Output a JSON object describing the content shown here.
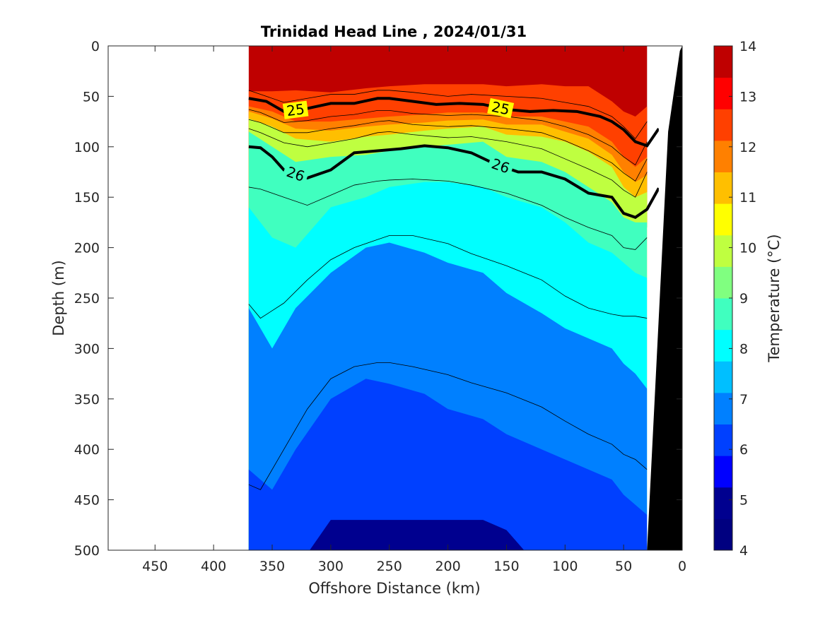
{
  "chart_data": {
    "type": "heatmap",
    "title": "Trinidad Head Line , 2024/01/31",
    "xlabel": "Offshore Distance (km)",
    "ylabel": "Depth (m)",
    "colorbar_label": "Temperature (°C)",
    "xlim": [
      490,
      0
    ],
    "ylim": [
      0,
      500
    ],
    "x_ticks": [
      450,
      400,
      350,
      300,
      250,
      200,
      150,
      100,
      50,
      0
    ],
    "y_ticks": [
      0,
      50,
      100,
      150,
      200,
      250,
      300,
      350,
      400,
      450,
      500
    ],
    "colorbar_range": [
      4,
      14
    ],
    "colorbar_ticks": [
      4,
      5,
      6,
      7,
      8,
      9,
      10,
      11,
      12,
      13,
      14
    ],
    "colormap": [
      "#000080",
      "#00008f",
      "#0000ff",
      "#0040ff",
      "#0080ff",
      "#00bfff",
      "#00ffff",
      "#40ffbf",
      "#80ff80",
      "#bfff40",
      "#ffff00",
      "#ffbf00",
      "#ff8000",
      "#ff4000",
      "#ff0000",
      "#bf0000"
    ],
    "data_extent_km": [
      370,
      20
    ],
    "isotherms_depth_m": {
      "x_km": [
        370,
        350,
        330,
        300,
        270,
        250,
        220,
        200,
        170,
        150,
        120,
        100,
        80,
        60,
        50,
        40,
        30
      ],
      "t13": [
        45,
        45,
        44,
        46,
        42,
        40,
        38,
        38,
        38,
        40,
        38,
        40,
        40,
        55,
        65,
        70,
        60
      ],
      "t12": [
        60,
        65,
        75,
        75,
        72,
        70,
        68,
        66,
        66,
        70,
        70,
        75,
        80,
        95,
        110,
        120,
        110
      ],
      "t11": [
        65,
        72,
        82,
        84,
        80,
        78,
        76,
        74,
        73,
        78,
        78,
        85,
        92,
        108,
        125,
        135,
        128
      ],
      "t10": [
        72,
        80,
        92,
        95,
        90,
        88,
        84,
        82,
        80,
        88,
        90,
        95,
        105,
        120,
        140,
        150,
        145
      ],
      "t9": [
        85,
        100,
        115,
        110,
        108,
        104,
        100,
        98,
        95,
        110,
        115,
        125,
        140,
        155,
        170,
        175,
        175
      ],
      "t8": [
        160,
        190,
        200,
        160,
        150,
        140,
        135,
        135,
        140,
        150,
        160,
        175,
        195,
        205,
        215,
        225,
        230
      ],
      "t7": [
        260,
        300,
        260,
        225,
        200,
        195,
        205,
        215,
        225,
        245,
        265,
        280,
        290,
        300,
        315,
        325,
        340
      ],
      "t6": [
        420,
        440,
        400,
        350,
        330,
        335,
        345,
        360,
        370,
        385,
        400,
        410,
        420,
        430,
        445,
        455,
        465
      ],
      "t5": [
        560,
        560,
        520,
        470,
        470,
        470,
        470,
        470,
        470,
        480,
        520,
        540,
        560,
        560,
        560,
        560,
        560
      ]
    },
    "density_contours": [
      {
        "label": "25",
        "x_km": [
          370,
          355,
          340,
          320,
          300,
          280,
          260,
          250,
          230,
          210,
          190,
          170,
          150,
          130,
          110,
          90,
          70,
          60,
          50,
          40,
          30,
          20
        ],
        "depth_m": [
          52,
          55,
          65,
          62,
          57,
          57,
          52,
          52,
          55,
          58,
          57,
          58,
          63,
          65,
          64,
          65,
          70,
          75,
          83,
          95,
          99,
          82
        ]
      },
      {
        "label": "26",
        "x_km": [
          370,
          360,
          350,
          340,
          320,
          300,
          280,
          260,
          240,
          220,
          200,
          180,
          160,
          140,
          120,
          100,
          80,
          70,
          60,
          50,
          40,
          30,
          20
        ],
        "depth_m": [
          100,
          101,
          110,
          123,
          131,
          123,
          106,
          104,
          102,
          99,
          101,
          106,
          117,
          125,
          125,
          132,
          146,
          148,
          150,
          166,
          170,
          162,
          141
        ]
      }
    ],
    "thin_contours_depth_m": {
      "x_km": [
        370,
        360,
        340,
        320,
        300,
        280,
        260,
        250,
        230,
        200,
        180,
        150,
        120,
        100,
        80,
        60,
        50,
        40,
        30
      ],
      "c1": [
        44,
        48,
        56,
        52,
        48,
        48,
        44,
        44,
        46,
        50,
        48,
        50,
        52,
        56,
        60,
        70,
        80,
        92,
        75
      ],
      "c2": [
        63,
        66,
        76,
        74,
        70,
        68,
        64,
        64,
        67,
        69,
        68,
        70,
        74,
        80,
        88,
        100,
        110,
        118,
        95
      ],
      "c3": [
        73,
        76,
        86,
        86,
        82,
        79,
        75,
        74,
        78,
        80,
        79,
        82,
        86,
        94,
        104,
        116,
        126,
        134,
        112
      ],
      "c4": [
        82,
        86,
        96,
        100,
        96,
        92,
        86,
        85,
        88,
        91,
        90,
        95,
        102,
        112,
        122,
        133,
        143,
        150,
        125
      ],
      "c5": [
        140,
        142,
        150,
        158,
        148,
        138,
        134,
        133,
        132,
        134,
        138,
        146,
        158,
        170,
        180,
        188,
        200,
        202,
        190
      ],
      "c6": [
        256,
        270,
        255,
        232,
        212,
        200,
        192,
        188,
        188,
        196,
        206,
        218,
        232,
        248,
        260,
        266,
        268,
        268,
        270
      ],
      "c7": [
        435,
        440,
        400,
        360,
        330,
        318,
        314,
        314,
        318,
        326,
        334,
        344,
        358,
        372,
        385,
        395,
        405,
        410,
        420
      ]
    }
  }
}
